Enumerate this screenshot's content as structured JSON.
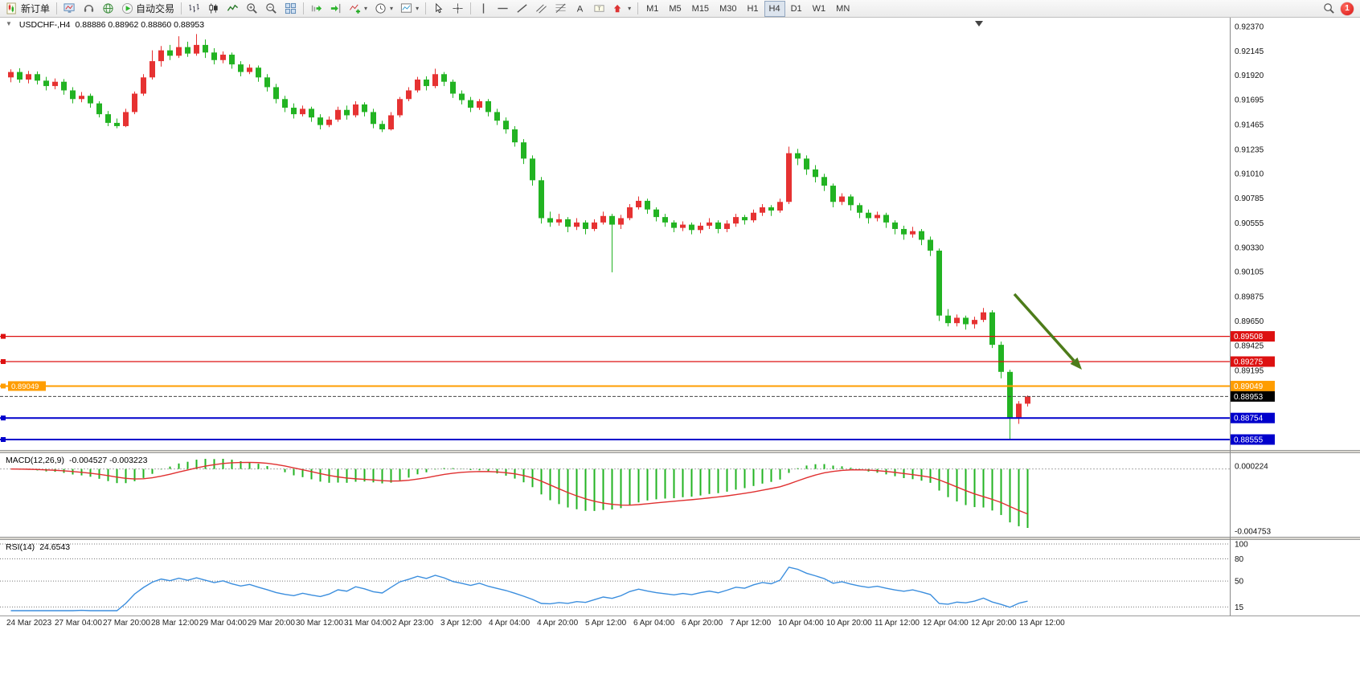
{
  "toolbar": {
    "new_order_label": "新订单",
    "autotrading_label": "自动交易",
    "timeframes": [
      "M1",
      "M5",
      "M15",
      "M30",
      "H1",
      "H4",
      "D1",
      "W1",
      "MN"
    ],
    "active_timeframe": "H4",
    "notification_count": "1",
    "icons": [
      "new-order-icon",
      "charts-monitor-icon",
      "headset-icon",
      "globe-icon",
      "autotrading-icon",
      "bar-chart-icon",
      "candlestick-chart-icon",
      "line-chart-icon",
      "zoom-in-icon",
      "zoom-out-icon",
      "tile-windows-icon",
      "auto-scroll-icon",
      "chart-shift-icon",
      "indicators-icon",
      "period-icon",
      "template-icon",
      "cursor-icon",
      "crosshair-icon",
      "vertical-line-icon",
      "horizontal-line-icon",
      "trendline-icon",
      "channel-icon",
      "fibonacci-icon",
      "text-icon",
      "label-icon",
      "arrow-tool-icon",
      "search-icon"
    ]
  },
  "chart_data": {
    "type": "candlestick",
    "title": "USDCHF-,H4",
    "symbol": "USDCHF",
    "timeframe": "H4",
    "ohlc_text": "0.88886 0.88962 0.88860 0.88953",
    "current_bar": {
      "open": 0.88886,
      "high": 0.88962,
      "low": 0.8886,
      "close": 0.88953
    },
    "current_price_label": "0.88953",
    "colors": {
      "up": "#e63232",
      "down": "#22b322",
      "macd_histogram": "#22b322",
      "macd_signal": "#e03030",
      "rsi_line": "#3b8ede",
      "hline_red": "#dd1111",
      "hline_orange": "#ff9d00",
      "hline_blue": "#0000cc"
    },
    "price_axis": {
      "top_price": 0.9237,
      "bottom_price": 0.88555,
      "ticks": [
        "0.92370",
        "0.92145",
        "0.91920",
        "0.91695",
        "0.91465",
        "0.91235",
        "0.91010",
        "0.90785",
        "0.90555",
        "0.90330",
        "0.90105",
        "0.89875",
        "0.89650",
        "0.89425",
        "0.89195"
      ]
    },
    "time_axis": [
      "24 Mar 2023",
      "27 Mar 04:00",
      "27 Mar 20:00",
      "28 Mar 12:00",
      "29 Mar 04:00",
      "29 Mar 20:00",
      "30 Mar 12:00",
      "31 Mar 04:00",
      "2 Apr 23:00",
      "3 Apr 12:00",
      "4 Apr 04:00",
      "4 Apr 20:00",
      "5 Apr 12:00",
      "6 Apr 04:00",
      "6 Apr 20:00",
      "7 Apr 12:00",
      "10 Apr 04:00",
      "10 Apr 20:00",
      "11 Apr 12:00",
      "12 Apr 04:00",
      "12 Apr 20:00",
      "13 Apr 12:00"
    ],
    "hlines": [
      {
        "price": 0.89508,
        "label": "0.89508",
        "color": "#dd1111",
        "width": 1.2,
        "left_label": false
      },
      {
        "price": 0.89275,
        "label": "0.89275",
        "color": "#dd1111",
        "width": 1.2,
        "left_label": false
      },
      {
        "price": 0.89049,
        "label": "0.89049",
        "color": "#ff9d00",
        "width": 2,
        "left_label": true
      },
      {
        "price": 0.88754,
        "label": "0.88754",
        "color": "#0000cc",
        "width": 2,
        "left_label": false
      },
      {
        "price": 0.88555,
        "label": "0.88555",
        "color": "#0000cc",
        "width": 2,
        "left_label": false
      }
    ],
    "annotation": {
      "type": "arrow",
      "color": "#4d7c1a",
      "from": [
        1262,
        344
      ],
      "to": [
        1346,
        438
      ]
    },
    "indicators": {
      "macd": {
        "label": "MACD(12,26,9)",
        "values_text": "-0.004527 -0.003223",
        "scale_top": "0.000224",
        "scale_bottom": "-0.004753",
        "fast": 12,
        "slow": 26,
        "signal": 9
      },
      "rsi": {
        "label": "RSI(14)",
        "value_text": "24.6543",
        "period": 14,
        "levels": [
          100,
          80,
          50,
          15
        ]
      }
    },
    "candles": [
      [
        0.919,
        0.91975,
        0.91855,
        0.9195
      ],
      [
        0.9195,
        0.91985,
        0.9185,
        0.9188
      ],
      [
        0.9188,
        0.9196,
        0.91845,
        0.9193
      ],
      [
        0.9193,
        0.91955,
        0.91835,
        0.9187
      ],
      [
        0.9187,
        0.91905,
        0.9178,
        0.9182
      ],
      [
        0.9182,
        0.9189,
        0.9179,
        0.9186
      ],
      [
        0.9186,
        0.91885,
        0.9174,
        0.9178
      ],
      [
        0.9178,
        0.9181,
        0.9166,
        0.917
      ],
      [
        0.917,
        0.91765,
        0.9167,
        0.9173
      ],
      [
        0.9173,
        0.9175,
        0.9162,
        0.9166
      ],
      [
        0.9166,
        0.9168,
        0.9153,
        0.9156
      ],
      [
        0.9156,
        0.9159,
        0.9145,
        0.9148
      ],
      [
        0.9148,
        0.9152,
        0.9143,
        0.9145
      ],
      [
        0.9145,
        0.9161,
        0.9144,
        0.9158
      ],
      [
        0.9158,
        0.9177,
        0.9156,
        0.9175
      ],
      [
        0.9175,
        0.9193,
        0.9173,
        0.919
      ],
      [
        0.919,
        0.9215,
        0.9188,
        0.9205
      ],
      [
        0.9205,
        0.9219,
        0.92,
        0.9215
      ],
      [
        0.9215,
        0.922,
        0.9206,
        0.921
      ],
      [
        0.921,
        0.9228,
        0.9208,
        0.9218
      ],
      [
        0.9218,
        0.9223,
        0.9209,
        0.9212
      ],
      [
        0.9212,
        0.923,
        0.921,
        0.922
      ],
      [
        0.922,
        0.9225,
        0.9208,
        0.9213
      ],
      [
        0.9213,
        0.9217,
        0.9202,
        0.9206
      ],
      [
        0.9206,
        0.9214,
        0.9203,
        0.9211
      ],
      [
        0.9211,
        0.9213,
        0.9198,
        0.9202
      ],
      [
        0.9202,
        0.9205,
        0.9191,
        0.9195
      ],
      [
        0.9195,
        0.9202,
        0.9193,
        0.9199
      ],
      [
        0.9199,
        0.9201,
        0.9186,
        0.919
      ],
      [
        0.919,
        0.9193,
        0.9177,
        0.9181
      ],
      [
        0.9181,
        0.9184,
        0.9166,
        0.917
      ],
      [
        0.917,
        0.9173,
        0.9158,
        0.9162
      ],
      [
        0.9162,
        0.9166,
        0.9152,
        0.9156
      ],
      [
        0.9156,
        0.9164,
        0.9154,
        0.9161
      ],
      [
        0.9161,
        0.9163,
        0.9149,
        0.9153
      ],
      [
        0.9153,
        0.9156,
        0.9142,
        0.9146
      ],
      [
        0.9146,
        0.9154,
        0.9144,
        0.9151
      ],
      [
        0.9151,
        0.9163,
        0.9149,
        0.916
      ],
      [
        0.916,
        0.9164,
        0.9151,
        0.9155
      ],
      [
        0.9155,
        0.9168,
        0.9153,
        0.9165
      ],
      [
        0.9165,
        0.9167,
        0.9154,
        0.9158
      ],
      [
        0.9158,
        0.9161,
        0.9143,
        0.9147
      ],
      [
        0.9147,
        0.915,
        0.91395,
        0.9142
      ],
      [
        0.9142,
        0.9158,
        0.9141,
        0.9155
      ],
      [
        0.9155,
        0.9172,
        0.9153,
        0.917
      ],
      [
        0.917,
        0.9181,
        0.9168,
        0.9178
      ],
      [
        0.9178,
        0.91905,
        0.9176,
        0.9188
      ],
      [
        0.9188,
        0.9191,
        0.9178,
        0.9182
      ],
      [
        0.9182,
        0.9198,
        0.918,
        0.9193
      ],
      [
        0.9193,
        0.9195,
        0.9182,
        0.9186
      ],
      [
        0.9186,
        0.9188,
        0.9171,
        0.9175
      ],
      [
        0.9175,
        0.9178,
        0.9165,
        0.9169
      ],
      [
        0.9169,
        0.9172,
        0.9158,
        0.9162
      ],
      [
        0.9162,
        0.917,
        0.916,
        0.9168
      ],
      [
        0.9168,
        0.917,
        0.9154,
        0.9158
      ],
      [
        0.9158,
        0.9161,
        0.9146,
        0.915
      ],
      [
        0.915,
        0.9153,
        0.9138,
        0.9142
      ],
      [
        0.9142,
        0.9145,
        0.9126,
        0.913
      ],
      [
        0.913,
        0.9133,
        0.911,
        0.9115
      ],
      [
        0.9115,
        0.9118,
        0.909,
        0.9095
      ],
      [
        0.9095,
        0.9098,
        0.9055,
        0.906
      ],
      [
        0.906,
        0.9066,
        0.9052,
        0.9056
      ],
      [
        0.9056,
        0.9064,
        0.9053,
        0.9059
      ],
      [
        0.9059,
        0.9061,
        0.9047,
        0.9052
      ],
      [
        0.9052,
        0.906,
        0.9049,
        0.9056
      ],
      [
        0.9056,
        0.9058,
        0.9045,
        0.905
      ],
      [
        0.905,
        0.9059,
        0.9048,
        0.9056
      ],
      [
        0.9056,
        0.9066,
        0.9054,
        0.9062
      ],
      [
        0.9062,
        0.9064,
        0.901,
        0.9054
      ],
      [
        0.9054,
        0.9063,
        0.905,
        0.906
      ],
      [
        0.906,
        0.9073,
        0.9058,
        0.907
      ],
      [
        0.907,
        0.908,
        0.9068,
        0.9076
      ],
      [
        0.9076,
        0.9078,
        0.9064,
        0.9068
      ],
      [
        0.9068,
        0.907,
        0.9057,
        0.9061
      ],
      [
        0.9061,
        0.9064,
        0.9052,
        0.9056
      ],
      [
        0.9056,
        0.9058,
        0.9047,
        0.9051
      ],
      [
        0.9051,
        0.9057,
        0.9048,
        0.9054
      ],
      [
        0.9054,
        0.9056,
        0.9045,
        0.9049
      ],
      [
        0.9049,
        0.9056,
        0.9046,
        0.9053
      ],
      [
        0.9053,
        0.906,
        0.905,
        0.9056
      ],
      [
        0.9056,
        0.9058,
        0.9046,
        0.905
      ],
      [
        0.905,
        0.9058,
        0.9047,
        0.9055
      ],
      [
        0.9055,
        0.9064,
        0.9052,
        0.9061
      ],
      [
        0.9061,
        0.9063,
        0.9054,
        0.9058
      ],
      [
        0.9058,
        0.9068,
        0.9056,
        0.9065
      ],
      [
        0.9065,
        0.9073,
        0.9062,
        0.907
      ],
      [
        0.907,
        0.9072,
        0.9062,
        0.9067
      ],
      [
        0.9067,
        0.9078,
        0.9065,
        0.9075
      ],
      [
        0.9075,
        0.9126,
        0.9073,
        0.912
      ],
      [
        0.912,
        0.9124,
        0.9109,
        0.9115
      ],
      [
        0.9115,
        0.9118,
        0.91,
        0.9105
      ],
      [
        0.9105,
        0.9109,
        0.9093,
        0.9098
      ],
      [
        0.9098,
        0.9101,
        0.9085,
        0.909
      ],
      [
        0.909,
        0.9092,
        0.907,
        0.9075
      ],
      [
        0.9075,
        0.9083,
        0.9072,
        0.908
      ],
      [
        0.908,
        0.9082,
        0.9067,
        0.9072
      ],
      [
        0.9072,
        0.9074,
        0.906,
        0.9065
      ],
      [
        0.9065,
        0.9068,
        0.9055,
        0.906
      ],
      [
        0.906,
        0.9066,
        0.9057,
        0.9063
      ],
      [
        0.9063,
        0.9065,
        0.9051,
        0.9056
      ],
      [
        0.9056,
        0.9058,
        0.9045,
        0.905
      ],
      [
        0.905,
        0.9053,
        0.904,
        0.9045
      ],
      [
        0.9045,
        0.9052,
        0.9042,
        0.9048
      ],
      [
        0.9048,
        0.905,
        0.9035,
        0.904
      ],
      [
        0.904,
        0.9043,
        0.9025,
        0.903
      ],
      [
        0.903,
        0.9032,
        0.8965,
        0.897
      ],
      [
        0.897,
        0.8976,
        0.896,
        0.8963
      ],
      [
        0.8963,
        0.8971,
        0.896,
        0.8968
      ],
      [
        0.8968,
        0.897,
        0.8957,
        0.8962
      ],
      [
        0.8962,
        0.8969,
        0.8958,
        0.8966
      ],
      [
        0.8966,
        0.8977,
        0.8964,
        0.8973
      ],
      [
        0.8973,
        0.8975,
        0.894,
        0.8943
      ],
      [
        0.8943,
        0.8946,
        0.8912,
        0.8918
      ],
      [
        0.8918,
        0.892,
        0.88555,
        0.8876
      ],
      [
        0.8876,
        0.8891,
        0.887,
        0.88886
      ],
      [
        0.88886,
        0.88962,
        0.8886,
        0.88953
      ]
    ]
  }
}
